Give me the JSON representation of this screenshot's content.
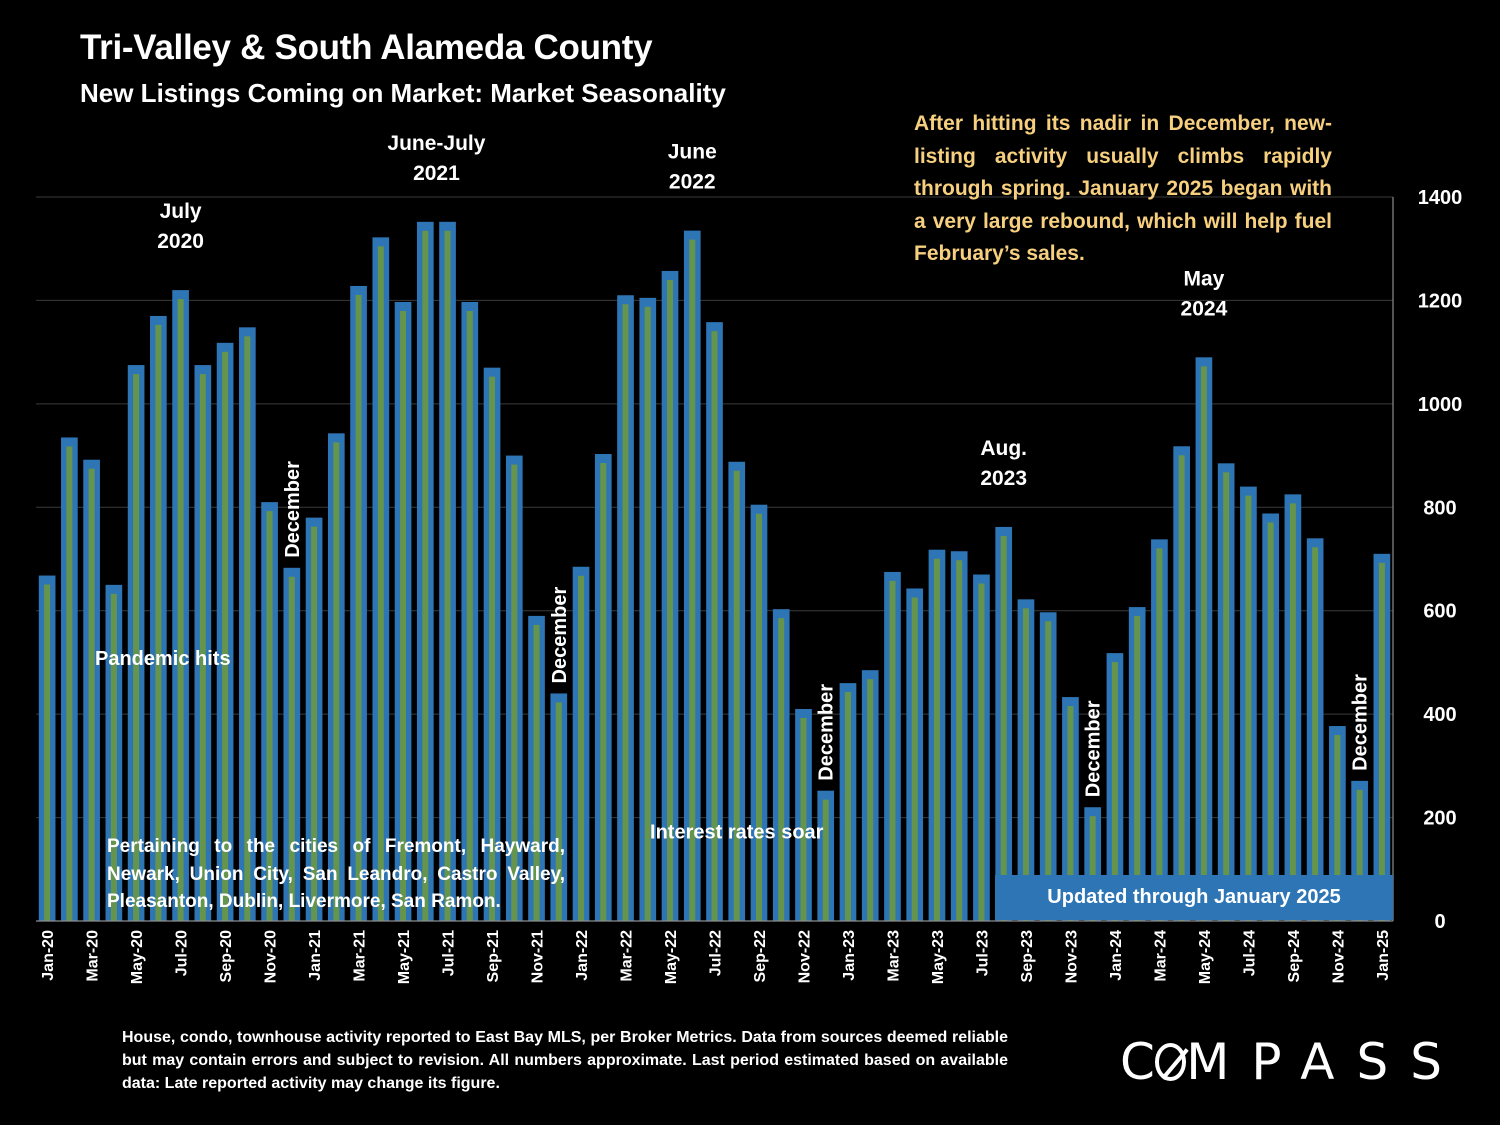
{
  "header": {
    "title": "Tri-Valley & South Alameda County",
    "subtitle": "New Listings Coming on Market: Market Seasonality"
  },
  "callout": "After hitting its nadir in December, new-listing activity usually climbs rapidly through spring. January 2025 began with a very  large rebound, which will help fuel February’s sales.",
  "cities_note": "Pertaining to the cities of Fremont, Hayward, Newark, Union City, San Leandro, Castro Valley, Pleasanton, Dublin, Livermore, San Ramon.",
  "updated_label": "Updated through January 2025",
  "footnote": "House, condo, townhouse activity reported to East Bay MLS, per Broker Metrics. Data from sources deemed reliable but may contain errors and subject to revision. All numbers approximate. Last period estimated based on available data: Late reported activity may change its figure.",
  "logo": {
    "before": "C",
    "after": "MPASS"
  },
  "colors": {
    "bar_fill": "#2e75b6",
    "bar_center": "#6f9a3a",
    "callout": "#f6cf7f",
    "background": "#000000",
    "grid": "#3a3a3a"
  },
  "chart_data": {
    "type": "bar",
    "categories": [
      "Jan-20",
      "Feb-20",
      "Mar-20",
      "Apr-20",
      "May-20",
      "Jun-20",
      "Jul-20",
      "Aug-20",
      "Sep-20",
      "Oct-20",
      "Nov-20",
      "Dec-20",
      "Jan-21",
      "Feb-21",
      "Mar-21",
      "Apr-21",
      "May-21",
      "Jun-21",
      "Jul-21",
      "Aug-21",
      "Sep-21",
      "Oct-21",
      "Nov-21",
      "Dec-21",
      "Jan-22",
      "Feb-22",
      "Mar-22",
      "Apr-22",
      "May-22",
      "Jun-22",
      "Jul-22",
      "Aug-22",
      "Sep-22",
      "Oct-22",
      "Nov-22",
      "Dec-22",
      "Jan-23",
      "Feb-23",
      "Mar-23",
      "Apr-23",
      "May-23",
      "Jun-23",
      "Jul-23",
      "Aug-23",
      "Sep-23",
      "Oct-23",
      "Nov-23",
      "Dec-23",
      "Jan-24",
      "Feb-24",
      "Mar-24",
      "Apr-24",
      "May-24",
      "Jun-24",
      "Jul-24",
      "Aug-24",
      "Sep-24",
      "Oct-24",
      "Nov-24",
      "Dec-24",
      "Jan-25"
    ],
    "xtick_labels": [
      "Jan-20",
      "Mar-20",
      "May-20",
      "Jul-20",
      "Sep-20",
      "Nov-20",
      "Jan-21",
      "Mar-21",
      "May-21",
      "Jul-21",
      "Sep-21",
      "Nov-21",
      "Jan-22",
      "Mar-22",
      "May-22",
      "Jul-22",
      "Sep-22",
      "Nov-22",
      "Jan-23",
      "Mar-23",
      "May-23",
      "Jul-23",
      "Sep-23",
      "Nov-23",
      "Jan-24",
      "Mar-24",
      "May-24",
      "Jul-24",
      "Sep-24",
      "Nov-24",
      "Jan-25"
    ],
    "values": [
      668,
      935,
      892,
      650,
      1075,
      1170,
      1220,
      1075,
      1118,
      1148,
      810,
      683,
      780,
      943,
      1228,
      1322,
      1197,
      1352,
      1352,
      1197,
      1070,
      900,
      590,
      440,
      685,
      903,
      1210,
      1205,
      1257,
      1335,
      1158,
      888,
      805,
      603,
      410,
      252,
      460,
      485,
      675,
      643,
      718,
      715,
      670,
      762,
      622,
      597,
      433,
      220,
      518,
      607,
      738,
      918,
      1090,
      885,
      840,
      788,
      825,
      740,
      377,
      271,
      710
    ],
    "ylim": [
      0,
      1400
    ],
    "yticks": [
      0,
      200,
      400,
      600,
      800,
      1000,
      1200,
      1400
    ],
    "y_axis_side": "right",
    "grid": true,
    "annotations": [
      {
        "index": 6,
        "lines": [
          "July",
          "2020"
        ]
      },
      {
        "index": 17.5,
        "lines": [
          "June-July",
          "2021"
        ]
      },
      {
        "index": 29,
        "lines": [
          "June",
          "2022"
        ]
      },
      {
        "index": 43,
        "lines": [
          "Aug.",
          "2023"
        ]
      },
      {
        "index": 52,
        "lines": [
          "May",
          "2024"
        ]
      }
    ],
    "december_labels": [
      11,
      23,
      35,
      47,
      59
    ],
    "december_text": "December",
    "inline_notes": [
      {
        "text": "Pandemic hits",
        "value": 495,
        "index": 5.2
      },
      {
        "text": "Interest rates soar",
        "value": 160,
        "index": 31
      }
    ]
  }
}
